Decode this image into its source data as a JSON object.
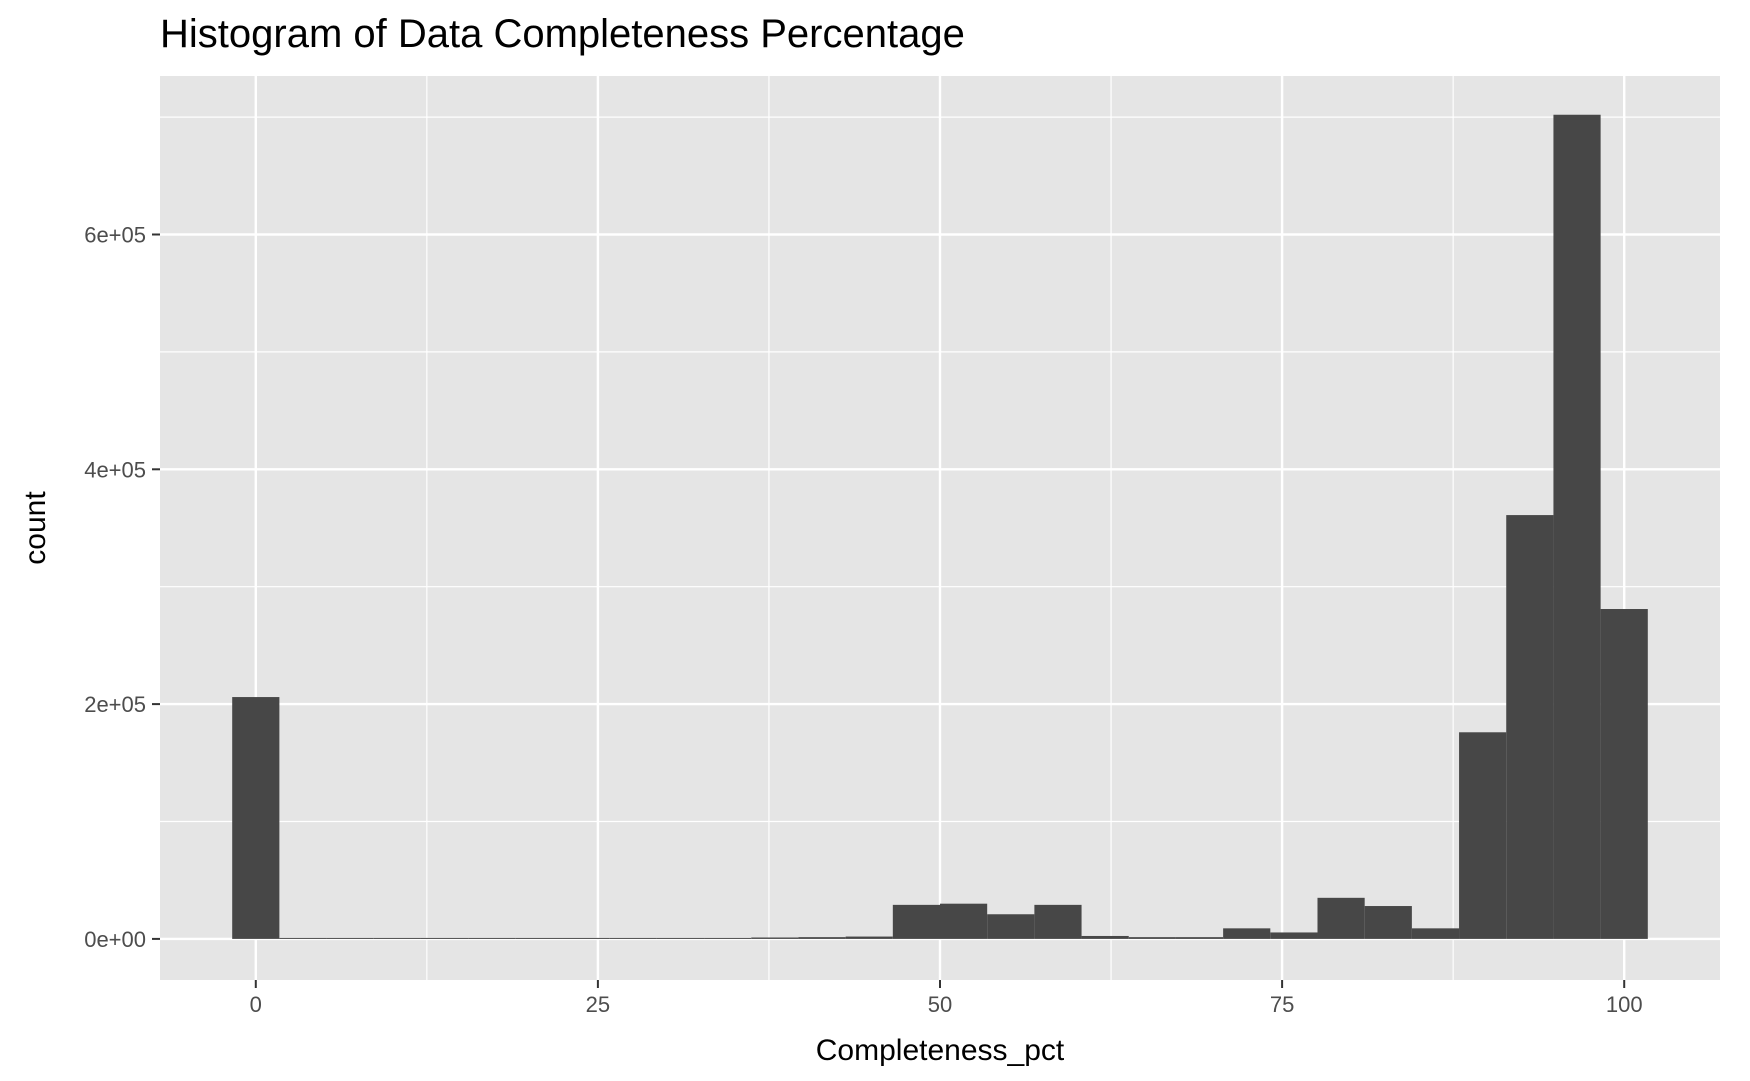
{
  "chart_data": {
    "type": "histogram",
    "title": "Histogram of Data Completeness Percentage",
    "xlabel": "Completeness_pct",
    "ylabel": "count",
    "xlim": [
      -7,
      107
    ],
    "ylim": [
      -35000,
      735000
    ],
    "x_ticks": [
      0,
      25,
      50,
      75,
      100
    ],
    "x_tick_labels": [
      "0",
      "25",
      "50",
      "75",
      "100"
    ],
    "y_ticks": [
      0,
      200000,
      400000,
      600000
    ],
    "y_tick_labels": [
      "0e+00",
      "2e+05",
      "4e+05",
      "6e+05"
    ],
    "bin_width": 3.448,
    "bins": [
      {
        "center": 0.0,
        "count": 206000
      },
      {
        "center": 3.448,
        "count": 0
      },
      {
        "center": 6.897,
        "count": 0
      },
      {
        "center": 10.345,
        "count": 0
      },
      {
        "center": 13.793,
        "count": 0
      },
      {
        "center": 17.241,
        "count": 800
      },
      {
        "center": 20.69,
        "count": 500
      },
      {
        "center": 24.138,
        "count": 300
      },
      {
        "center": 27.586,
        "count": 300
      },
      {
        "center": 31.034,
        "count": 400
      },
      {
        "center": 34.483,
        "count": 400
      },
      {
        "center": 37.931,
        "count": 1200
      },
      {
        "center": 41.379,
        "count": 1500
      },
      {
        "center": 44.828,
        "count": 2000
      },
      {
        "center": 48.276,
        "count": 29000
      },
      {
        "center": 51.724,
        "count": 30000
      },
      {
        "center": 55.172,
        "count": 21000
      },
      {
        "center": 58.621,
        "count": 29000
      },
      {
        "center": 62.069,
        "count": 2500
      },
      {
        "center": 65.517,
        "count": 1500
      },
      {
        "center": 68.966,
        "count": 1500
      },
      {
        "center": 72.414,
        "count": 9000
      },
      {
        "center": 75.862,
        "count": 5500
      },
      {
        "center": 79.31,
        "count": 35000
      },
      {
        "center": 82.759,
        "count": 28000
      },
      {
        "center": 86.207,
        "count": 9000
      },
      {
        "center": 89.655,
        "count": 176000
      },
      {
        "center": 93.103,
        "count": 361000
      },
      {
        "center": 96.552,
        "count": 702000
      },
      {
        "center": 100.0,
        "count": 281000
      }
    ],
    "grid": true,
    "colors": {
      "bar": "#474747",
      "panel": "#e5e5e5",
      "grid": "#ffffff"
    }
  }
}
